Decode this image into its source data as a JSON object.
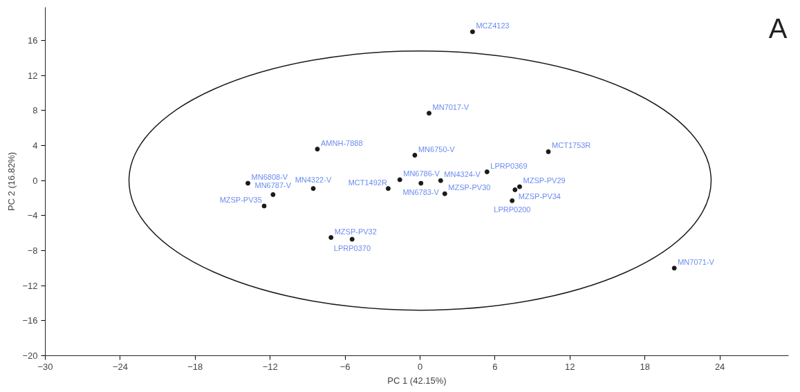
{
  "chart_data": {
    "type": "scatter",
    "xlabel": "PC 1 (42.15%)",
    "ylabel": "PC 2 (16.82%)",
    "xlim": [
      -30,
      29.5
    ],
    "ylim": [
      -20,
      19.8
    ],
    "xticks": [
      -30,
      -24,
      -18,
      -12,
      -6,
      0,
      6,
      12,
      18,
      24
    ],
    "yticks": [
      -20,
      -16,
      -12,
      -8,
      -4,
      0,
      4,
      8,
      12,
      16
    ],
    "grid": false,
    "series": [
      {
        "marker": "circle",
        "color": "#1a1a1a",
        "x": [
          4.2,
          0.72,
          -8.22,
          -0.42,
          10.27,
          5.36,
          -1.62,
          1.65,
          0.07,
          -2.55,
          1.98,
          7.6,
          7.97,
          7.37,
          -13.78,
          -11.77,
          -8.55,
          -12.48,
          -7.13,
          -5.44,
          20.35
        ],
        "values": [
          17.0,
          7.7,
          3.6,
          2.9,
          3.3,
          1.0,
          0.1,
          0.0,
          -0.3,
          -0.9,
          -1.5,
          -1.05,
          -0.7,
          -2.3,
          -0.3,
          -1.6,
          -0.9,
          -2.9,
          -6.5,
          -6.7,
          -10.0
        ]
      }
    ],
    "annotations": [
      {
        "text": "MCZ4123",
        "x": 4.2,
        "y": 17.0
      },
      {
        "text": "MN7017-V",
        "x": 0.72,
        "y": 7.7
      },
      {
        "text": "AMNH-7888",
        "x": -8.22,
        "y": 3.6
      },
      {
        "text": "MN6750-V",
        "x": -0.42,
        "y": 2.9
      },
      {
        "text": "MCT1753R",
        "x": 10.27,
        "y": 3.3
      },
      {
        "text": "LPRP0369",
        "x": 5.36,
        "y": 1.0
      },
      {
        "text": "MN6786-V",
        "x": -1.62,
        "y": 0.1
      },
      {
        "text": "MN4324-V",
        "x": 1.65,
        "y": 0.0
      },
      {
        "text": "MN6783-V",
        "x": 0.07,
        "y": -0.3
      },
      {
        "text": "MCT1492R",
        "x": -2.55,
        "y": -0.9
      },
      {
        "text": "MZSP-PV30",
        "x": 1.98,
        "y": -1.5
      },
      {
        "text": "MZSP-PV34",
        "x": 7.6,
        "y": -1.05
      },
      {
        "text": "MZSP-PV29",
        "x": 7.97,
        "y": -0.7
      },
      {
        "text": "LPRP0200",
        "x": 7.37,
        "y": -2.3
      },
      {
        "text": "MN6808-V",
        "x": -13.78,
        "y": -0.3
      },
      {
        "text": "MN6787-V",
        "x": -11.77,
        "y": -1.6
      },
      {
        "text": "MN4322-V",
        "x": -8.55,
        "y": -0.9
      },
      {
        "text": "MZSP-PV35",
        "x": -12.48,
        "y": -2.9
      },
      {
        "text": "MZSP-PV32",
        "x": -7.13,
        "y": -6.5
      },
      {
        "text": "LPRP0370",
        "x": -5.44,
        "y": -6.7
      },
      {
        "text": "MN7071-V",
        "x": 20.35,
        "y": -10.0
      },
      "A"
    ]
  }
}
